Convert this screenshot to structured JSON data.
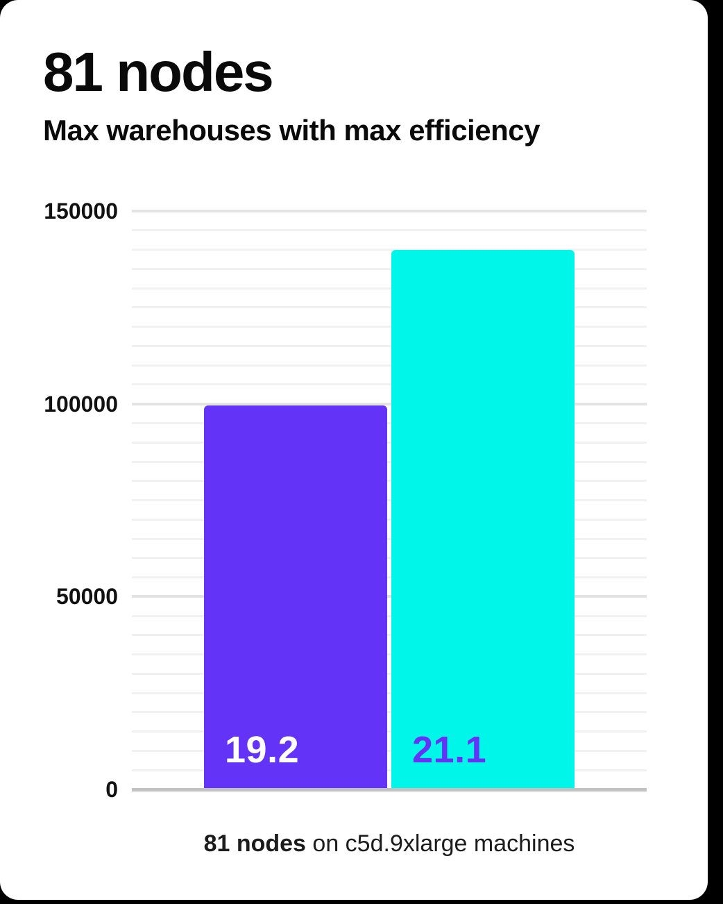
{
  "header": {
    "title": "81 nodes",
    "subtitle": "Max warehouses with max efficiency"
  },
  "chart_data": {
    "type": "bar",
    "title": "81 nodes",
    "subtitle": "Max warehouses with max efficiency",
    "categories": [
      "19.2",
      "21.1"
    ],
    "series": [
      {
        "name": "Max warehouses with max efficiency",
        "values": [
          99600,
          140000
        ]
      }
    ],
    "bar_value_labels": [
      "19.2",
      "21.1"
    ],
    "bar_colors": [
      "#6333F7",
      "#00F6E8"
    ],
    "bar_label_colors": [
      "#FFFFFF",
      "#6333F7"
    ],
    "xlabel": "",
    "ylabel": "",
    "ylim": [
      0,
      150000
    ],
    "yticks": [
      0,
      50000,
      100000,
      150000
    ],
    "ytick_labels": [
      "0",
      "50000",
      "100000",
      "150000"
    ],
    "minor_grid_step": 5000,
    "grid": true,
    "legend_position": "none",
    "caption": "81 nodes on c5d.9xlarge machines"
  },
  "caption": {
    "bold": "81 nodes",
    "rest": " on c5d.9xlarge machines"
  },
  "colors": {
    "page_background": "#000000",
    "card_background": "#FFFFFF",
    "text": "#0A0A0A",
    "grid_minor": "#F1F1F1",
    "grid_major": "#E3E3E3",
    "axis_line": "#C2C2C2"
  }
}
